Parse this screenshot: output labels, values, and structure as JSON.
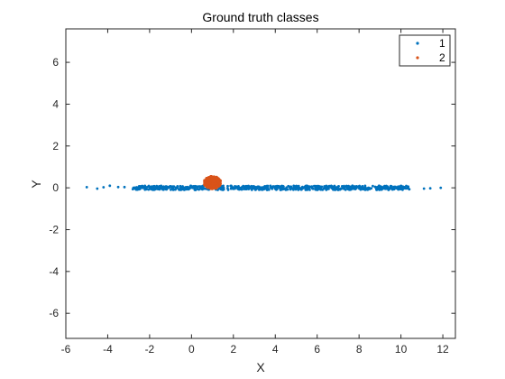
{
  "chart_data": {
    "type": "scatter",
    "title": "Ground truth classes",
    "xlabel": "X",
    "ylabel": "Y",
    "xlim": [
      -6,
      12.6
    ],
    "ylim": [
      -7.2,
      7.6
    ],
    "xticks": [
      -6,
      -4,
      -2,
      0,
      2,
      4,
      6,
      8,
      10,
      12
    ],
    "yticks": [
      -6,
      -4,
      -2,
      0,
      2,
      4,
      6
    ],
    "grid": false,
    "legend_position": "top-right",
    "series": [
      {
        "name": "1",
        "color": "#0072BD",
        "marker": "dot",
        "distribution": "horizontal band along y = 0",
        "x_range": [
          -5.0,
          11.9
        ],
        "y_range": [
          -0.1,
          0.1
        ],
        "sample_x": [
          -5.0,
          -4.5,
          -4.2,
          -3.9,
          -3.5,
          -3.2,
          -2.8,
          -2.5,
          -2.0,
          -1.5,
          -1.0,
          -0.5,
          0.0,
          0.5,
          1.5,
          2.0,
          2.5,
          3.0,
          3.5,
          4.0,
          4.5,
          5.0,
          5.5,
          6.0,
          6.5,
          7.0,
          7.5,
          8.0,
          8.5,
          9.0,
          9.5,
          10.0,
          10.4,
          11.1,
          11.4,
          11.9
        ]
      },
      {
        "name": "2",
        "color": "#D95319",
        "marker": "dot",
        "distribution": "compact cluster",
        "center": [
          1.0,
          0.25
        ],
        "radius": [
          0.4,
          0.3
        ]
      }
    ]
  }
}
